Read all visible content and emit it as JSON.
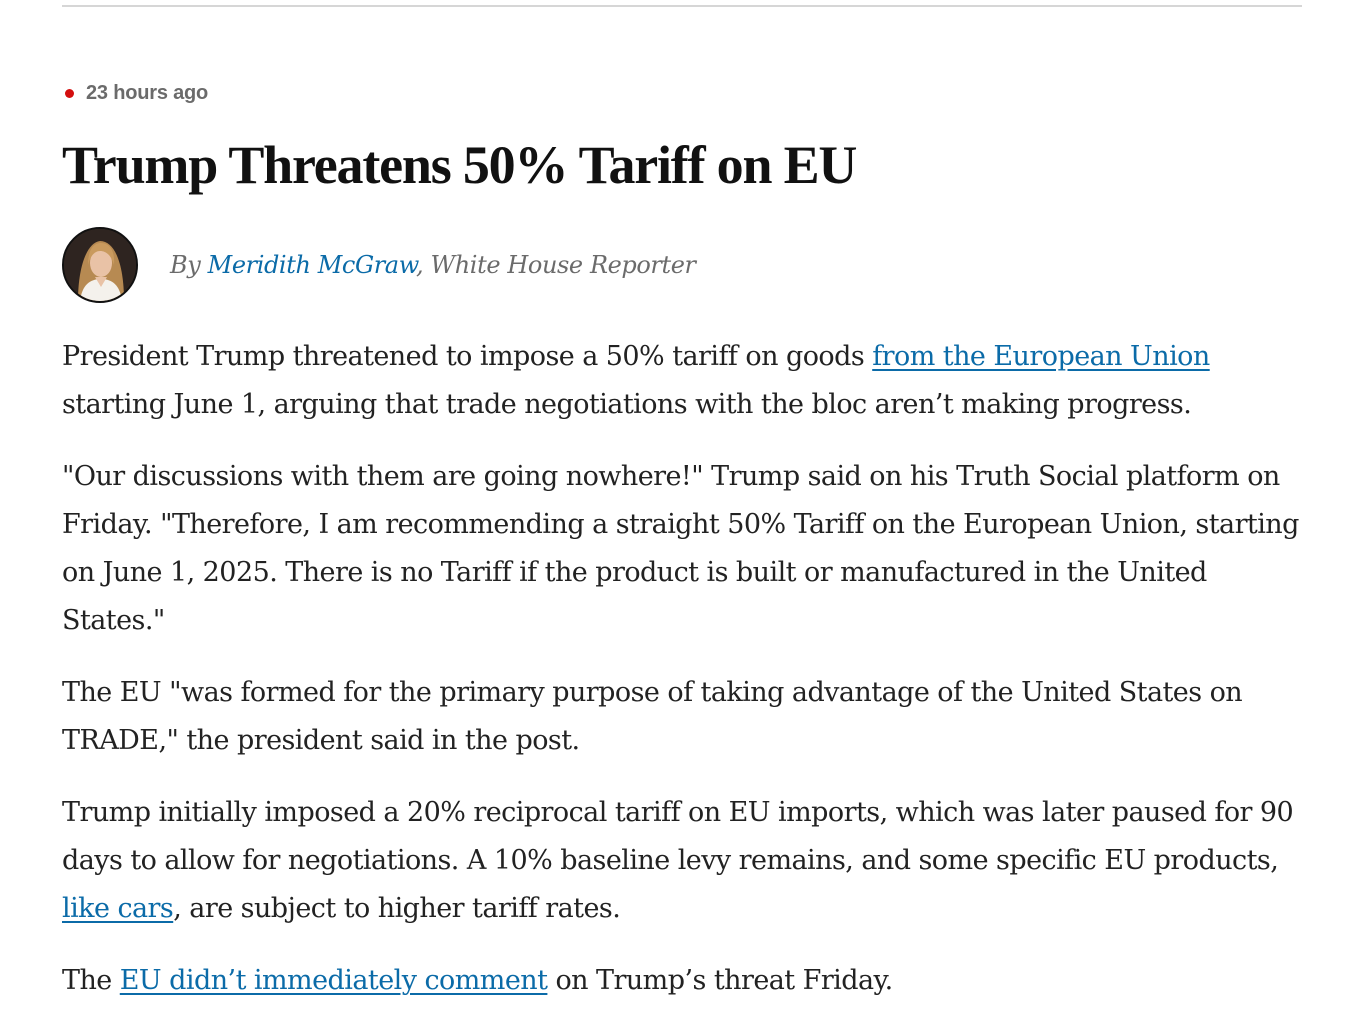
{
  "timestamp": {
    "text": "23 hours ago",
    "dot_color": "#d40f0f"
  },
  "headline": "Trump Threatens 50% Tariff on EU",
  "byline": {
    "prefix": "By",
    "author": "Meridith McGraw",
    "separator": ",",
    "role": "White House Reporter"
  },
  "article": {
    "p1": {
      "before": "President Trump threatened to impose a 50% tariff on goods ",
      "link": "from the European Union",
      "after": " starting June 1, arguing that trade negotiations with the bloc aren’t making progress."
    },
    "p2": "\"Our discussions with them are going nowhere!\" Trump said on his Truth Social platform on Friday. \"Therefore, I am recommending a straight 50% Tariff on the European Union, starting on June 1, 2025. There is no Tariff if the product is built or manufactured in the United States.\"",
    "p3": "The EU \"was formed for the primary purpose of taking advantage of the United States on TRADE,\" the president said in the post.",
    "p4": {
      "before": "Trump initially imposed a 20% reciprocal tariff on EU imports, which was later paused for 90 days to allow for negotiations. A 10% baseline levy remains, and some specific EU products, ",
      "link": "like cars",
      "after": ", are subject to higher tariff rates."
    },
    "p5": {
      "before": "The ",
      "link": "EU didn’t immediately comment",
      "after": " on Trump’s threat Friday."
    }
  },
  "colors": {
    "link": "#0b6ba8",
    "live_dot": "#d40f0f",
    "meta_gray": "#6b6b6b"
  }
}
